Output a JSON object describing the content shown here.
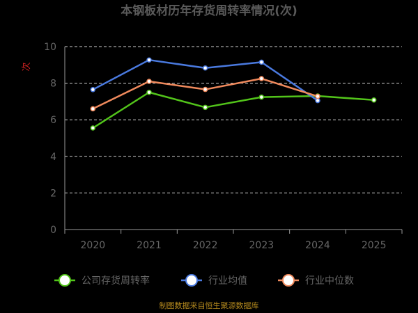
{
  "chart_data": {
    "type": "line",
    "title": "本钢板材历年存货周转率情况(次)",
    "ylabel": "次",
    "categories": [
      "2020",
      "2021",
      "2022",
      "2023",
      "2024",
      "2025"
    ],
    "ylim": [
      0,
      10
    ],
    "yticks": [
      0,
      2,
      4,
      6,
      8,
      10
    ],
    "grid": true,
    "legend_position": "bottom",
    "series": [
      {
        "name": "公司存货周转率",
        "color": "#52c41a",
        "values": [
          5.55,
          7.5,
          6.68,
          7.24,
          7.3,
          7.08
        ]
      },
      {
        "name": "行业均值",
        "color": "#4a7ae0",
        "values": [
          7.65,
          9.27,
          8.83,
          9.15,
          7.05,
          null
        ]
      },
      {
        "name": "行业中位数",
        "color": "#f08a5d",
        "values": [
          6.6,
          8.1,
          7.66,
          8.25,
          7.28,
          null
        ]
      }
    ],
    "source": "制图数据来自恒生聚源数据库"
  }
}
